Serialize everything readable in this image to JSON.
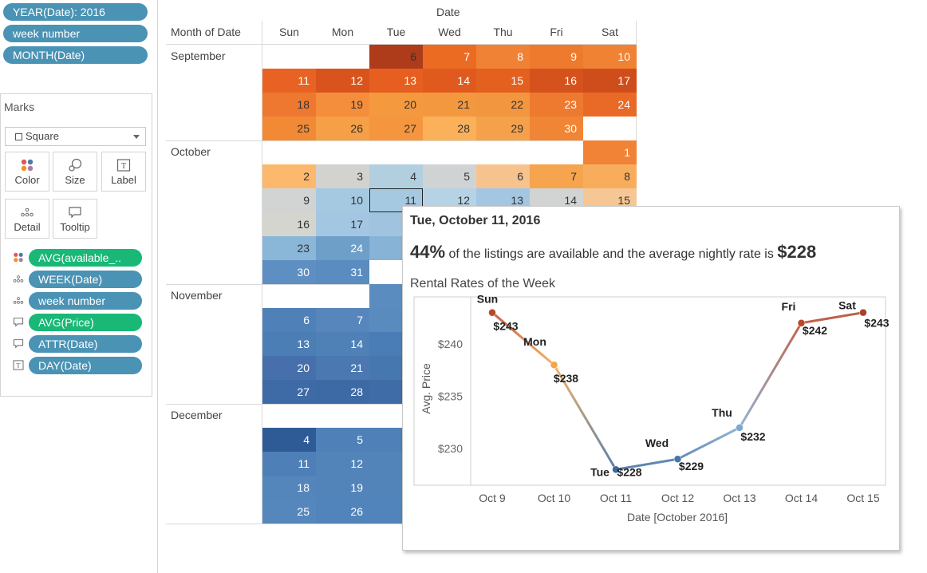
{
  "filters": [
    {
      "label": "YEAR(Date): 2016"
    },
    {
      "label": "week number"
    },
    {
      "label": "MONTH(Date)"
    }
  ],
  "marks": {
    "title": "Marks",
    "mark_type": "Square",
    "buttons": [
      {
        "label": "Color",
        "icon": "color-icon"
      },
      {
        "label": "Size",
        "icon": "size-icon"
      },
      {
        "label": "Label",
        "icon": "label-icon"
      },
      {
        "label": "Detail",
        "icon": "detail-icon"
      },
      {
        "label": "Tooltip",
        "icon": "tooltip-icon"
      }
    ],
    "fields": [
      {
        "label": "AVG(available_..",
        "icon": "color-icon",
        "color": "#19b877"
      },
      {
        "label": "WEEK(Date)",
        "icon": "detail-icon",
        "color": "#4a93b5"
      },
      {
        "label": "week number",
        "icon": "detail-icon",
        "color": "#4a93b5"
      },
      {
        "label": "AVG(Price)",
        "icon": "tooltip-icon",
        "color": "#19b877"
      },
      {
        "label": "ATTR(Date)",
        "icon": "tooltip-icon",
        "color": "#4a93b5"
      },
      {
        "label": "DAY(Date)",
        "icon": "label-icon",
        "color": "#4a93b5"
      }
    ]
  },
  "calendar": {
    "top_header": "Date",
    "row_header": "Month of Date",
    "days": [
      "Sun",
      "Mon",
      "Tue",
      "Wed",
      "Thu",
      "Fri",
      "Sat"
    ],
    "months": [
      {
        "name": "September",
        "weeks": [
          [
            null,
            null,
            {
              "d": "6",
              "c": "#ae3b1a"
            },
            {
              "d": "7",
              "c": "#ec6b22"
            },
            {
              "d": "8",
              "c": "#f08236"
            },
            {
              "d": "9",
              "c": "#ee7a2e"
            },
            {
              "d": "10",
              "c": "#f08234"
            }
          ],
          [
            {
              "d": "11",
              "c": "#e86323"
            },
            {
              "d": "12",
              "c": "#d9541c"
            },
            {
              "d": "13",
              "c": "#e65e20"
            },
            {
              "d": "14",
              "c": "#e05a1e"
            },
            {
              "d": "15",
              "c": "#e3601f"
            },
            {
              "d": "16",
              "c": "#d6521c"
            },
            {
              "d": "17",
              "c": "#cf4d1a"
            }
          ],
          [
            {
              "d": "18",
              "c": "#ef7831"
            },
            {
              "d": "19",
              "c": "#f48e3c"
            },
            {
              "d": "20",
              "c": "#f5993f"
            },
            {
              "d": "21",
              "c": "#f49840"
            },
            {
              "d": "22",
              "c": "#f39640"
            },
            {
              "d": "23",
              "c": "#ee7a30"
            },
            {
              "d": "24",
              "c": "#e86a26"
            }
          ],
          [
            {
              "d": "25",
              "c": "#f28935"
            },
            {
              "d": "26",
              "c": "#f59f47"
            },
            {
              "d": "27",
              "c": "#f5963f"
            },
            {
              "d": "28",
              "c": "#fbb05a"
            },
            {
              "d": "29",
              "c": "#f5a14b"
            },
            {
              "d": "30",
              "c": "#f08536"
            },
            null
          ]
        ]
      },
      {
        "name": "October",
        "weeks": [
          [
            null,
            null,
            null,
            null,
            null,
            null,
            {
              "d": "1",
              "c": "#f08335"
            }
          ],
          [
            {
              "d": "2",
              "c": "#fcb96e"
            },
            {
              "d": "3",
              "c": "#d2d2cf"
            },
            {
              "d": "4",
              "c": "#b2cfe0"
            },
            {
              "d": "5",
              "c": "#d0d3d4"
            },
            {
              "d": "6",
              "c": "#f6c38f"
            },
            {
              "d": "7",
              "c": "#f6a44e"
            },
            {
              "d": "8",
              "c": "#f8ad5d"
            }
          ],
          [
            {
              "d": "9",
              "c": "#d2d4d4"
            },
            {
              "d": "10",
              "c": "#a6c9e2"
            },
            {
              "d": "11",
              "c": "#a6c9e2",
              "sel": true
            },
            {
              "d": "12",
              "c": "#b6d3e5"
            },
            {
              "d": "13",
              "c": "#a3c7e2"
            },
            {
              "d": "14",
              "c": "#d2d4d4"
            },
            {
              "d": "15",
              "c": "#f6c695"
            }
          ],
          [
            {
              "d": "16",
              "c": "#d5d5cf"
            },
            {
              "d": "17",
              "c": "#a3c7e2"
            },
            {
              "c": "#a0c4e0"
            },
            null,
            null,
            null,
            null
          ],
          [
            {
              "d": "23",
              "c": "#8ab7d8"
            },
            {
              "d": "24",
              "c": "#6e9fc8"
            },
            {
              "c": "#86b3d6"
            },
            null,
            null,
            null,
            null
          ],
          [
            {
              "d": "30",
              "c": "#5d8fc2"
            },
            {
              "d": "31",
              "c": "#5a8cc0"
            },
            null,
            null,
            null,
            null,
            null
          ]
        ]
      },
      {
        "name": "November",
        "weeks": [
          [
            null,
            null,
            {
              "c": "#5b8cc0"
            },
            null,
            null,
            null,
            null
          ],
          [
            {
              "d": "6",
              "c": "#4f81b8"
            },
            {
              "d": "7",
              "c": "#5686bc"
            },
            {
              "c": "#5a8bbf"
            },
            null,
            null,
            null,
            null
          ],
          [
            {
              "d": "13",
              "c": "#4c7eb6"
            },
            {
              "d": "14",
              "c": "#4f81b7"
            },
            {
              "c": "#4a7cb5"
            },
            null,
            null,
            null,
            null
          ],
          [
            {
              "d": "20",
              "c": "#466fab"
            },
            {
              "d": "21",
              "c": "#4b78b1"
            },
            {
              "c": "#4677af"
            },
            null,
            null,
            null,
            null
          ],
          [
            {
              "d": "27",
              "c": "#3e6aa6"
            },
            {
              "d": "28",
              "c": "#3d6aa5"
            },
            {
              "c": "#3f6ca7"
            },
            null,
            null,
            null,
            null
          ]
        ]
      },
      {
        "name": "December",
        "weeks": [
          [
            null,
            null,
            null,
            null,
            null,
            null,
            null
          ],
          [
            {
              "d": "4",
              "c": "#2e5b96"
            },
            {
              "d": "5",
              "c": "#4f81b8"
            },
            {
              "c": "#4f81b8"
            },
            null,
            null,
            null,
            null
          ],
          [
            {
              "d": "11",
              "c": "#4e80b7"
            },
            {
              "d": "12",
              "c": "#5284ba"
            },
            {
              "c": "#5284ba"
            },
            null,
            null,
            null,
            null
          ],
          [
            {
              "d": "18",
              "c": "#5486bb"
            },
            {
              "d": "19",
              "c": "#5284ba"
            },
            {
              "c": "#5284ba"
            },
            null,
            null,
            null,
            null
          ],
          [
            {
              "d": "25",
              "c": "#5587bc"
            },
            {
              "d": "26",
              "c": "#5184ba"
            },
            {
              "c": "#5184ba"
            },
            null,
            null,
            null,
            null
          ]
        ]
      }
    ]
  },
  "tooltip": {
    "title": "Tue, October 11, 2016",
    "pct": "44%",
    "mid": " of the listings are available and the average nightly rate is ",
    "rate": "$228",
    "subtitle": "Rental Rates of the Week"
  },
  "chart_data": {
    "type": "line",
    "title": "Rental Rates of the Week",
    "xlabel": "Date [October 2016]",
    "ylabel": "Avg. Price",
    "x": [
      "Oct 9",
      "Oct 10",
      "Oct 11",
      "Oct 12",
      "Oct 13",
      "Oct 14",
      "Oct 15"
    ],
    "y": [
      243,
      238,
      228,
      229,
      232,
      242,
      243
    ],
    "point_labels": [
      "Sun",
      "Mon",
      "Tue",
      "Wed",
      "Thu",
      "Fri",
      "Sat"
    ],
    "value_labels": [
      "$243",
      "$238",
      "$228",
      "$229",
      "$232",
      "$242",
      "$243"
    ],
    "point_colors": [
      "#b9472a",
      "#f4a54a",
      "#3c6a9e",
      "#4777a8",
      "#7fa8cf",
      "#b9482b",
      "#a8432a"
    ],
    "y_ticks": [
      230,
      235,
      240
    ],
    "y_tick_labels": [
      "$230",
      "$235",
      "$240"
    ],
    "ylim": [
      226.5,
      244.5
    ],
    "grid": false
  }
}
